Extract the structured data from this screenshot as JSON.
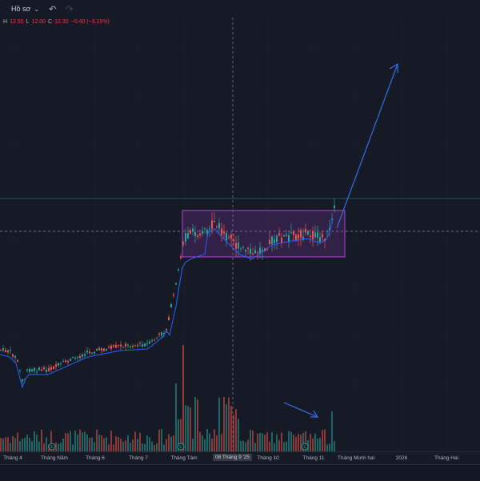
{
  "topbar": {
    "profile_label": "Hồ sơ",
    "profile_icon": "chevron-down-icon",
    "undo_icon": "undo-arrow-icon",
    "redo_icon": "redo-arrow-icon"
  },
  "legend": {
    "h_label": "H",
    "h_value": "12.50",
    "l_label": "L",
    "l_value": "12.00",
    "c_label": "C",
    "c_value": "12.30",
    "change": "−0.40 (−3.15%)"
  },
  "xaxis": {
    "ticks": [
      "Tháng 4",
      "Tháng Năm",
      "Tháng 6",
      "Tháng 7",
      "Tháng Tám",
      "Tháng 10",
      "Tháng 11",
      "Tháng Mười hai",
      "2026",
      "Tháng Hai"
    ],
    "crosshair_label": "08 Tháng 9 '25"
  },
  "colors": {
    "up": "#26a69a",
    "down": "#ef5350",
    "ma_line": "#2962ff",
    "range_box": "#b040e0",
    "arrow": "#2f6fe8",
    "background": "#161a25"
  },
  "chart_data": {
    "type": "candlestick",
    "period": "Tháng 4 – Tháng 11",
    "annotations": [
      "price range box",
      "upward projection arrow",
      "volume spike arrow"
    ]
  }
}
